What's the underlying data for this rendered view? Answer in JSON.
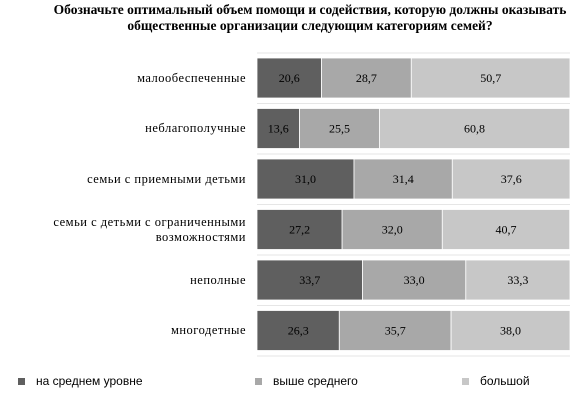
{
  "chart_data": {
    "type": "bar",
    "orientation": "horizontal",
    "stacked": true,
    "title": "Обозначьте оптимальный объем помощи и содействия, которую должны оказывать общественные организации следующим категориям семей?",
    "categories": [
      "малообеспеченные",
      "неблагополучные",
      "семьи с приемными детьми",
      "семьи с детьми с ограниченными возможностями",
      "неполные",
      "многодетные"
    ],
    "series": [
      {
        "name": "на среднем уровне",
        "color": "#5f5f5f",
        "values": [
          20.6,
          13.6,
          31.0,
          27.2,
          33.7,
          26.3
        ]
      },
      {
        "name": "выше среднего",
        "color": "#a8a8a8",
        "values": [
          28.7,
          25.5,
          31.4,
          32.0,
          33.0,
          35.7
        ]
      },
      {
        "name": "большой",
        "color": "#c7c7c7",
        "values": [
          50.7,
          60.8,
          37.6,
          40.7,
          33.3,
          38.0
        ]
      }
    ],
    "value_labels": [
      [
        "20,6",
        "13,6",
        "31,0",
        "27,2",
        "33,7",
        "26,3"
      ],
      [
        "28,7",
        "25,5",
        "31,4",
        "32,0",
        "33,0",
        "35,7"
      ],
      [
        "50,7",
        "60,8",
        "37,6",
        "40,7",
        "33,3",
        "38,0"
      ]
    ],
    "xlim": [
      0,
      100
    ],
    "grid": false,
    "legend_position": "bottom"
  }
}
